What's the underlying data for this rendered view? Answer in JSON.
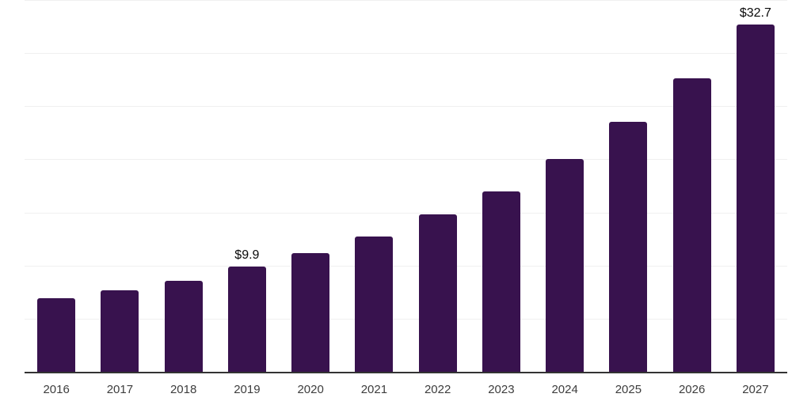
{
  "chart_data": {
    "type": "bar",
    "title": "",
    "xlabel": "",
    "ylabel": "",
    "categories": [
      "2016",
      "2017",
      "2018",
      "2019",
      "2020",
      "2021",
      "2022",
      "2023",
      "2024",
      "2025",
      "2026",
      "2027"
    ],
    "values": [
      6.9,
      7.7,
      8.6,
      9.9,
      11.2,
      12.7,
      14.8,
      17.0,
      20.0,
      23.5,
      27.6,
      32.7
    ],
    "data_labels": [
      "",
      "",
      "",
      "$9.9",
      "",
      "",
      "",
      "",
      "",
      "",
      "",
      "$32.7"
    ],
    "ylim": [
      0,
      35
    ],
    "gridline_step": 5,
    "grid": true,
    "legend": false,
    "colors": {
      "bar": "#38124E",
      "gridline": "#f0f0f0",
      "axis_line": "#333333",
      "tick_label": "#3d3d3d",
      "data_label": "#0a0a0a",
      "background": "#ffffff"
    }
  }
}
